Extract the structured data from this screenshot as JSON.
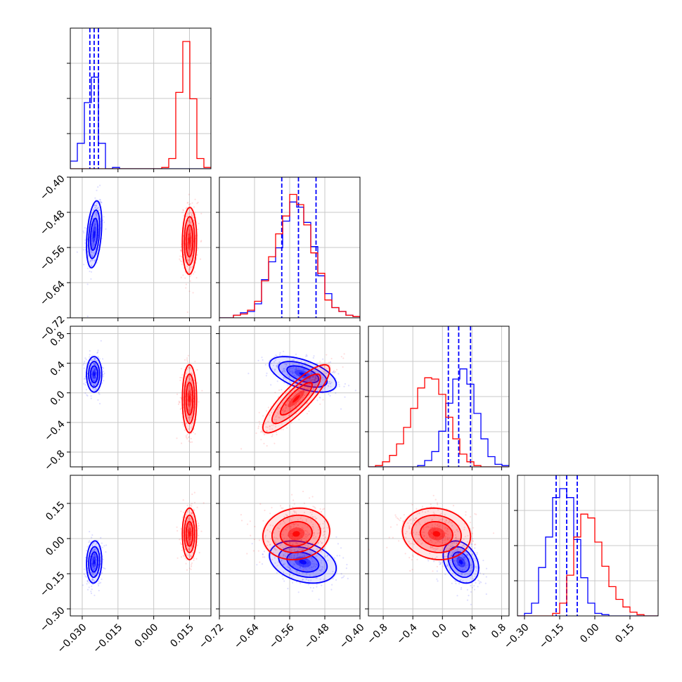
{
  "chart_data": {
    "type": "corner",
    "title": "",
    "series": [
      {
        "color": "#0000ff",
        "params": [
          {
            "mean": -0.025,
            "std": 0.0016
          },
          {
            "mean": -0.53,
            "std": 0.038
          },
          {
            "mean": 0.25,
            "std": 0.12
          },
          {
            "mean": -0.1,
            "std": 0.045
          }
        ],
        "correlations": {
          "1_0": 0.35,
          "2_0": 0.0,
          "3_0": 0.1,
          "2_1": -0.55,
          "3_1": -0.3,
          "3_2": -0.3
        },
        "quantile_lines": [
          [
            -0.0268,
            -0.025,
            -0.0232
          ],
          [
            -0.578,
            -0.54,
            -0.5
          ],
          [
            0.08,
            0.22,
            0.38
          ],
          [
            -0.165,
            -0.12,
            -0.075
          ]
        ],
        "histograms": [
          [
            0.06,
            0.2,
            0.52,
            0.72,
            0.2,
            0.0,
            0.01,
            0,
            0,
            0,
            0,
            0,
            0,
            0,
            0,
            0,
            0,
            0,
            0,
            0
          ],
          [
            0.0,
            0.0,
            0.02,
            0.04,
            0.05,
            0.11,
            0.3,
            0.44,
            0.55,
            0.76,
            0.91,
            0.87,
            0.75,
            0.56,
            0.33,
            0.19,
            0.08,
            0.05,
            0.02,
            0.01
          ],
          [
            0,
            0,
            0,
            0,
            0,
            0,
            0,
            0.01,
            0.05,
            0.12,
            0.28,
            0.5,
            0.69,
            0.77,
            0.65,
            0.42,
            0.22,
            0.08,
            0.02,
            0.01
          ],
          [
            0.0,
            0.02,
            0.1,
            0.38,
            0.62,
            0.93,
            1.0,
            0.93,
            0.6,
            0.3,
            0.1,
            0.02,
            0.01,
            0,
            0,
            0,
            0,
            0,
            0,
            0
          ]
        ]
      },
      {
        "color": "#ff0000",
        "params": [
          {
            "mean": 0.015,
            "std": 0.0015
          },
          {
            "mean": -0.545,
            "std": 0.038
          },
          {
            "mean": -0.08,
            "std": 0.23
          },
          {
            "mean": 0.02,
            "std": 0.055
          }
        ],
        "correlations": {
          "1_0": 0.05,
          "2_0": 0.0,
          "3_0": 0.0,
          "2_1": 0.85,
          "3_1": 0.1,
          "3_2": -0.1
        },
        "histograms": [
          [
            0,
            0,
            0,
            0,
            0,
            0,
            0,
            0,
            0,
            0,
            0,
            0,
            0,
            0.01,
            0.08,
            0.6,
            1.0,
            0.55,
            0.08,
            0.01
          ],
          [
            0.0,
            0.0,
            0.02,
            0.03,
            0.06,
            0.13,
            0.29,
            0.48,
            0.66,
            0.8,
            0.97,
            0.89,
            0.73,
            0.51,
            0.35,
            0.14,
            0.08,
            0.05,
            0.02,
            0.01
          ],
          [
            0.0,
            0.01,
            0.04,
            0.09,
            0.18,
            0.31,
            0.46,
            0.62,
            0.7,
            0.69,
            0.57,
            0.39,
            0.22,
            0.1,
            0.04,
            0.01,
            0.0,
            0,
            0,
            0
          ],
          [
            0,
            0,
            0,
            0,
            0,
            0.02,
            0.1,
            0.32,
            0.62,
            0.8,
            0.77,
            0.58,
            0.39,
            0.23,
            0.13,
            0.07,
            0.03,
            0.01,
            0,
            0
          ]
        ]
      }
    ],
    "axes": [
      {
        "range": [
          -0.035,
          0.024
        ],
        "ticks": [
          -0.03,
          -0.015,
          0.0,
          0.015
        ],
        "tick_labels": [
          "−0.030",
          "−0.015",
          "0.000",
          "0.015"
        ]
      },
      {
        "range": [
          -0.72,
          -0.4
        ],
        "ticks": [
          -0.72,
          -0.64,
          -0.56,
          -0.48,
          -0.4
        ],
        "tick_labels": [
          "−0.72",
          "−0.64",
          "−0.56",
          "−0.48",
          "−0.40"
        ]
      },
      {
        "range": [
          -1.0,
          0.9
        ],
        "ticks": [
          -0.8,
          -0.4,
          0.0,
          0.4,
          0.8
        ],
        "tick_labels": [
          "−0.8",
          "−0.4",
          "0.0",
          "0.4",
          "0.8"
        ]
      },
      {
        "range": [
          -0.33,
          0.27
        ],
        "ticks": [
          -0.3,
          -0.15,
          0.0,
          0.15
        ],
        "tick_labels": [
          "−0.30",
          "−0.15",
          "0.00",
          "0.15"
        ]
      }
    ],
    "grid": true,
    "legend": "none"
  }
}
